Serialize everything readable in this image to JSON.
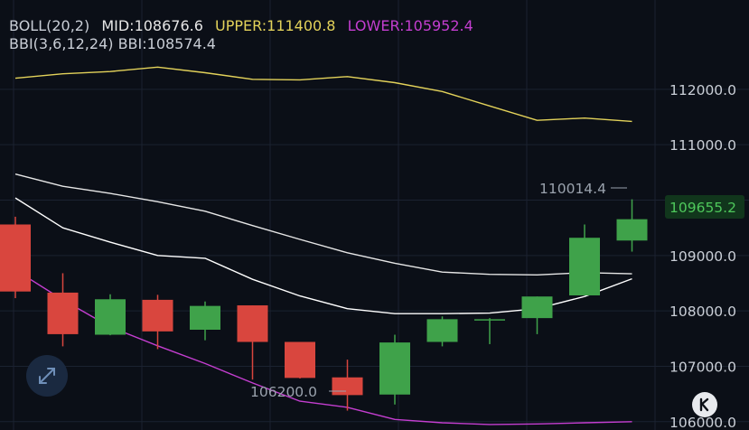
{
  "legend": {
    "boll_name": "BOLL(20,2)",
    "mid": "MID:108676.6",
    "upper": "UPPER:111400.8",
    "lower": "LOWER:105952.4",
    "bbi": "BBI(3,6,12,24) BBI:108574.4"
  },
  "current_price": "109655.2",
  "annotations": {
    "high_label": "110014.4",
    "low_label": "106200.0"
  },
  "icons": {
    "fullscreen": "expand-arrows-icon",
    "mode_button": "k-icon"
  },
  "colors": {
    "up": "#3fa24a",
    "down": "#d9463e",
    "upper": "#e3d25a",
    "lower": "#c43ed0",
    "mid": "#e6e6e6",
    "bbi": "#ffffff",
    "text": "#c9ced6",
    "grid": "#1b2230",
    "current_bg": "#11361c",
    "current_fg": "#4ec85b"
  },
  "chart_data": {
    "type": "candlestick",
    "y_ticks": [
      "112000.0",
      "111000.0",
      "110000.0",
      "109000.0",
      "108000.0",
      "107000.0",
      "106000.0"
    ],
    "ylim": [
      105850,
      112650
    ],
    "candles": [
      {
        "o": 109560,
        "h": 109700,
        "l": 108230,
        "c": 108350
      },
      {
        "o": 108330,
        "h": 108680,
        "l": 107360,
        "c": 107580
      },
      {
        "o": 107570,
        "h": 108300,
        "l": 107560,
        "c": 108210
      },
      {
        "o": 108200,
        "h": 108290,
        "l": 107310,
        "c": 107630
      },
      {
        "o": 107660,
        "h": 108170,
        "l": 107470,
        "c": 108090
      },
      {
        "o": 108100,
        "h": 108100,
        "l": 106760,
        "c": 107440
      },
      {
        "o": 107440,
        "h": 107430,
        "l": 106780,
        "c": 106790
      },
      {
        "o": 106800,
        "h": 107120,
        "l": 106200,
        "c": 106480
      },
      {
        "o": 106490,
        "h": 107570,
        "l": 106310,
        "c": 107430
      },
      {
        "o": 107440,
        "h": 107900,
        "l": 107360,
        "c": 107850
      },
      {
        "o": 107850,
        "h": 107870,
        "l": 107400,
        "c": 107850
      },
      {
        "o": 107870,
        "h": 108260,
        "l": 107580,
        "c": 108260
      },
      {
        "o": 108280,
        "h": 109560,
        "l": 108290,
        "c": 109320
      },
      {
        "o": 109270,
        "h": 110014.4,
        "l": 109070,
        "c": 109655.2
      }
    ],
    "series": [
      {
        "name": "UPPER",
        "values": [
          112200,
          112280,
          112320,
          112400,
          112300,
          112180,
          112170,
          112230,
          112120,
          111960,
          111700,
          111440,
          111480,
          111420
        ]
      },
      {
        "name": "MID",
        "values": [
          110470,
          110250,
          110120,
          109970,
          109800,
          109540,
          109290,
          109050,
          108860,
          108700,
          108660,
          108650,
          108690,
          108670
        ]
      },
      {
        "name": "LOWER",
        "values": [
          108740,
          108200,
          107710,
          107370,
          107050,
          106700,
          106370,
          106260,
          106040,
          105980,
          105950,
          105960,
          105980,
          106000
        ]
      },
      {
        "name": "BBI",
        "values": [
          110040,
          109500,
          109240,
          109000,
          108950,
          108570,
          108270,
          108040,
          107950,
          107950,
          107960,
          108040,
          108260,
          108580
        ]
      }
    ]
  }
}
